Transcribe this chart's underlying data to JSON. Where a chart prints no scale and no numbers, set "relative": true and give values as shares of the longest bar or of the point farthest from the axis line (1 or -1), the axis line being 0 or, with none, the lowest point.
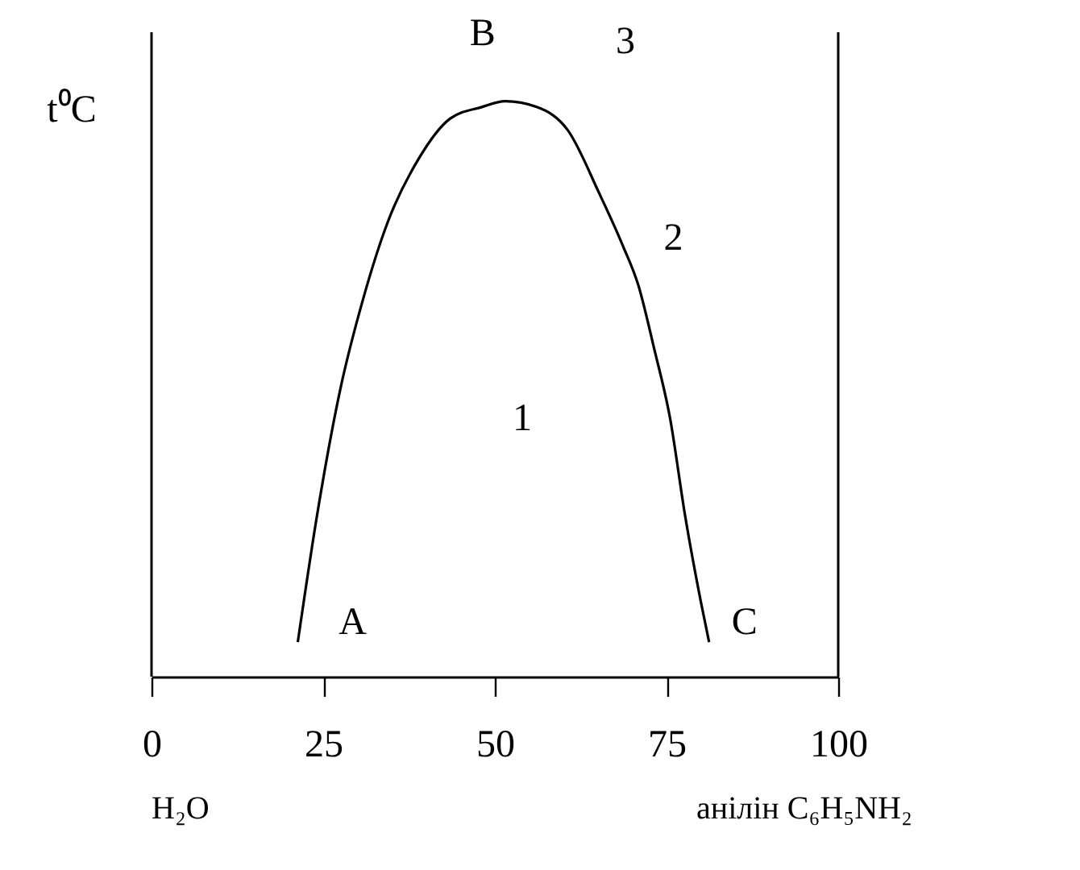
{
  "chart_data": {
    "type": "line",
    "relative": true,
    "ylabel": "t⁰C",
    "x": [
      21.3,
      24.1,
      27.5,
      30.9,
      34.4,
      38.9,
      43.5,
      48.1,
      51.5,
      56.1,
      60.6,
      65.2,
      68.6,
      70.9,
      73.2,
      75.5,
      77.7,
      80.0,
      81.2
    ],
    "series": [
      {
        "color": "#000000",
        "values": [
          0.06,
          0.28,
          0.5,
          0.66,
          0.79,
          0.9,
          0.97,
          0.99,
          1,
          0.99,
          0.95,
          0.84,
          0.75,
          0.68,
          0.57,
          0.45,
          0.28,
          0.13,
          0.06
        ]
      }
    ],
    "xlim": [
      0,
      100
    ],
    "xticks": [
      0,
      25,
      50,
      75,
      100
    ],
    "ref_lines": [
      {
        "axis": "x",
        "value": 0,
        "color": "#000000"
      },
      {
        "axis": "x",
        "value": 100,
        "color": "#000000"
      }
    ],
    "annotations": [
      {
        "text": "A",
        "x": 21.3,
        "y": 0.06
      },
      {
        "text": "B",
        "x": 51.5,
        "y": 1
      },
      {
        "text": "C",
        "x": 81.2,
        "y": 0.06
      },
      "1",
      "2",
      "3",
      "H₂O",
      "анілін C₆H₅NH₂"
    ]
  }
}
